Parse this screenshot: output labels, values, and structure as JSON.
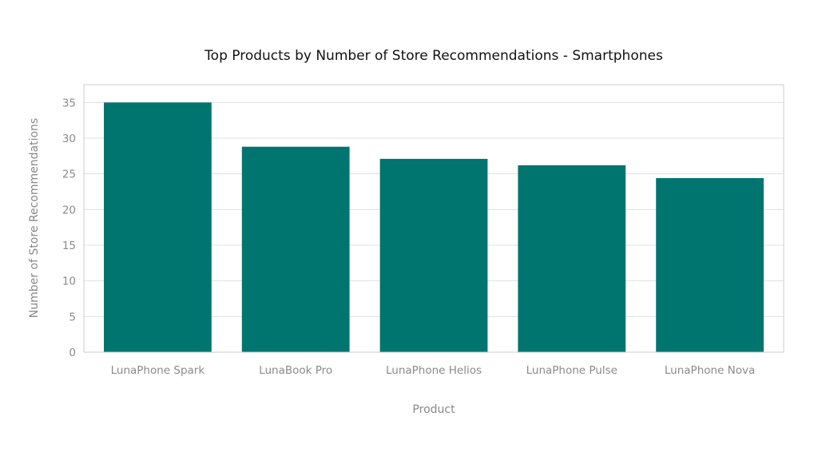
{
  "chart_data": {
    "type": "bar",
    "title": "Top Products by Number of Store Recommendations - Smartphones",
    "xlabel": "Product",
    "ylabel": "Number of Store Recommendations",
    "categories": [
      "LunaPhone Spark",
      "LunaBook Pro",
      "LunaPhone Helios",
      "LunaPhone Pulse",
      "LunaPhone Nova"
    ],
    "values": [
      35,
      28.8,
      27.1,
      26.2,
      24.4
    ],
    "ylim": [
      0,
      37.5
    ],
    "yticks": [
      "0",
      "5",
      "10",
      "15",
      "20",
      "25",
      "30",
      "35"
    ],
    "grid": true,
    "legend": "none",
    "bar_color": "#007570",
    "grid_color": "#e0e0e0",
    "frame_color": "#cccccc"
  }
}
